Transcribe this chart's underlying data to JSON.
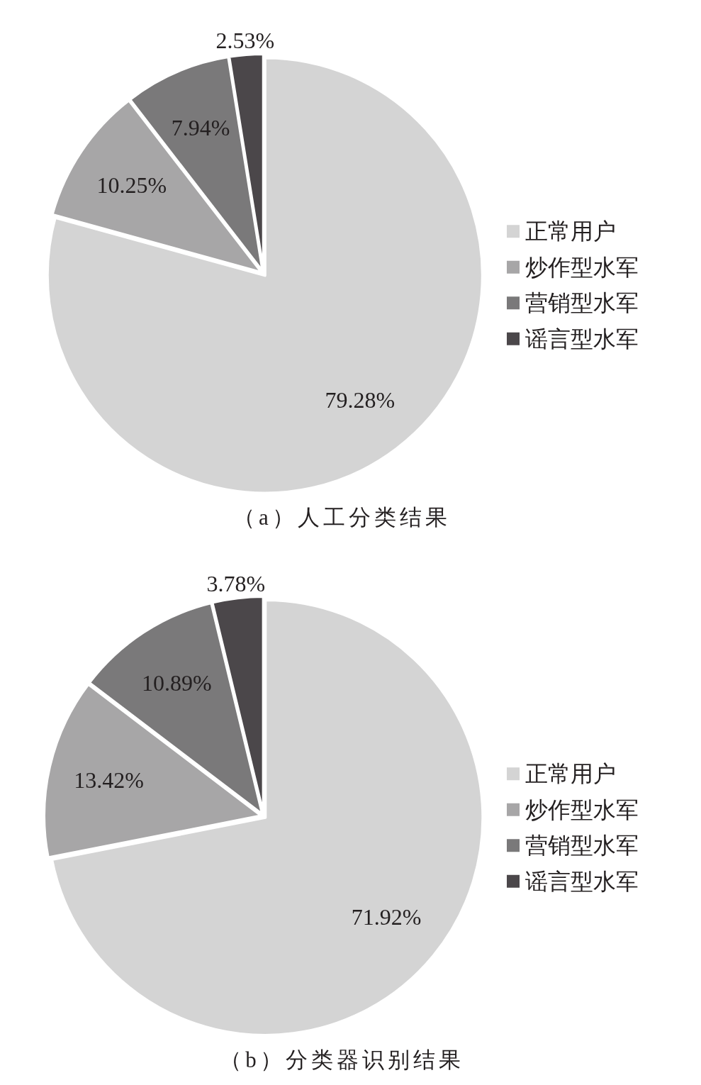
{
  "chart_data": [
    {
      "type": "pie",
      "title": "（a）人工分类结果",
      "categories": [
        "正常用户",
        "炒作型水军",
        "营销型水军",
        "谣言型水军"
      ],
      "values": [
        79.28,
        10.25,
        7.94,
        2.53
      ],
      "colors": [
        "#d4d4d4",
        "#a7a6a7",
        "#7a797a",
        "#4b474a"
      ],
      "value_labels": [
        "79.28%",
        "10.25%",
        "7.94%",
        "2.53%"
      ],
      "legend": "right"
    },
    {
      "type": "pie",
      "title": "（b）分类器识别结果",
      "categories": [
        "正常用户",
        "炒作型水军",
        "营销型水军",
        "谣言型水军"
      ],
      "values": [
        71.92,
        13.42,
        10.89,
        3.78
      ],
      "colors": [
        "#d4d4d4",
        "#a7a6a7",
        "#7a797a",
        "#4b474a"
      ],
      "value_labels": [
        "71.92%",
        "13.42%",
        "10.89%",
        "3.78%"
      ],
      "legend": "right"
    }
  ]
}
